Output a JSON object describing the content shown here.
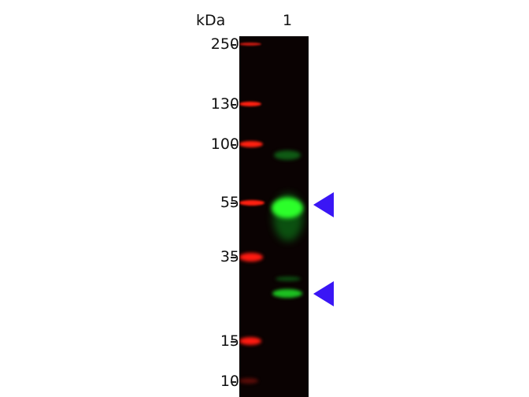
{
  "header": {
    "unit_label": "kDa",
    "lane_labels": [
      "1"
    ]
  },
  "markers": [
    {
      "label": "250",
      "kda": 250
    },
    {
      "label": "130",
      "kda": 130
    },
    {
      "label": "100",
      "kda": 100
    },
    {
      "label": "55",
      "kda": 55
    },
    {
      "label": "35",
      "kda": 35
    },
    {
      "label": "15",
      "kda": 15
    },
    {
      "label": "10",
      "kda": 10
    }
  ],
  "colors": {
    "ladder": "#ff2a1a",
    "signal": "#22ff22",
    "arrow": "#3a16f5",
    "membrane": "#0a0202"
  },
  "arrows": [
    {
      "icon": "arrowhead-left-icon"
    },
    {
      "icon": "arrowhead-left-icon"
    }
  ]
}
